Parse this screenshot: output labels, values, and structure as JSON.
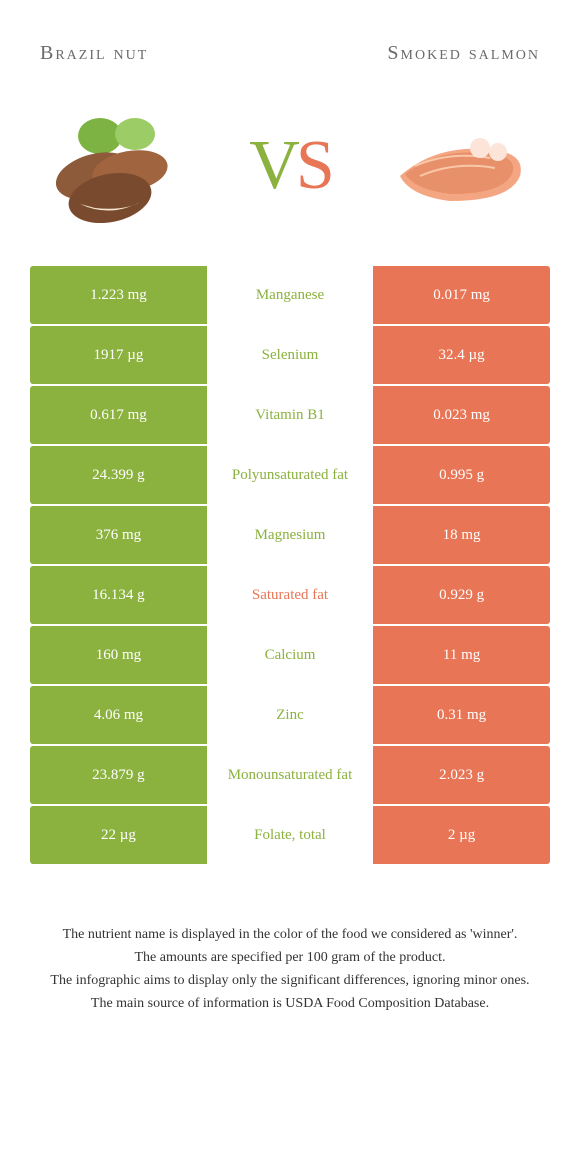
{
  "colors": {
    "green": "#8bb13f",
    "orange": "#e87555",
    "midGreen": "#8bb13f",
    "midOrange": "#e87555"
  },
  "titles": {
    "left": "Brazil nut",
    "right": "Smoked salmon"
  },
  "vs": {
    "v": "V",
    "s": "S"
  },
  "rows": [
    {
      "left": "1.223 mg",
      "mid": "Manganese",
      "right": "0.017 mg",
      "winner": "green"
    },
    {
      "left": "1917 µg",
      "mid": "Selenium",
      "right": "32.4 µg",
      "winner": "green"
    },
    {
      "left": "0.617 mg",
      "mid": "Vitamin B1",
      "right": "0.023 mg",
      "winner": "green"
    },
    {
      "left": "24.399 g",
      "mid": "Polyunsaturated fat",
      "right": "0.995 g",
      "winner": "green"
    },
    {
      "left": "376 mg",
      "mid": "Magnesium",
      "right": "18 mg",
      "winner": "green"
    },
    {
      "left": "16.134 g",
      "mid": "Saturated fat",
      "right": "0.929 g",
      "winner": "orange"
    },
    {
      "left": "160 mg",
      "mid": "Calcium",
      "right": "11 mg",
      "winner": "green"
    },
    {
      "left": "4.06 mg",
      "mid": "Zinc",
      "right": "0.31 mg",
      "winner": "green"
    },
    {
      "left": "23.879 g",
      "mid": "Monounsaturated fat",
      "right": "2.023 g",
      "winner": "green"
    },
    {
      "left": "22 µg",
      "mid": "Folate, total",
      "right": "2 µg",
      "winner": "green"
    }
  ],
  "footnotes": [
    "The nutrient name is displayed in the color of the food we considered as 'winner'.",
    "The amounts are specified per 100 gram of the product.",
    "The infographic aims to display only the significant differences, ignoring minor ones.",
    "The main source of information is USDA Food Composition Database."
  ]
}
